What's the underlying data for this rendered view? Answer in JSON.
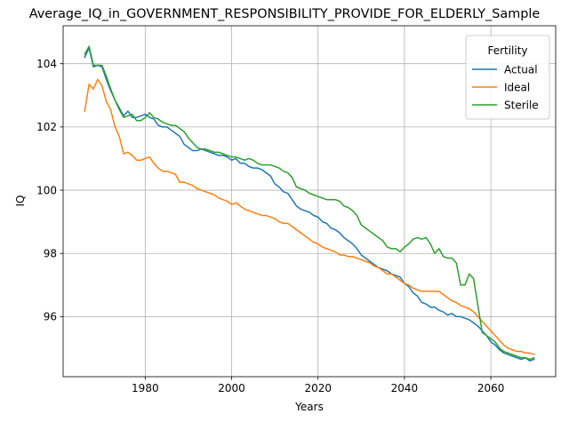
{
  "chart_data": {
    "type": "line",
    "title": "Average_IQ_in_GOVERNMENT_RESPONSIBILITY_PROVIDE_FOR_ELDERLY_Sample",
    "xlabel": "Years",
    "ylabel": "IQ",
    "xlim": [
      1961,
      2075
    ],
    "ylim": [
      94.1,
      105.2
    ],
    "xticks": [
      1980,
      2000,
      2020,
      2040,
      2060
    ],
    "yticks": [
      96,
      98,
      100,
      102,
      104
    ],
    "grid": true,
    "legend": {
      "title": "Fertility",
      "placement": "top-right"
    },
    "x": [
      1966,
      1967,
      1968,
      1969,
      1970,
      1971,
      1972,
      1973,
      1974,
      1975,
      1976,
      1977,
      1978,
      1979,
      1980,
      1981,
      1982,
      1983,
      1984,
      1985,
      1986,
      1987,
      1988,
      1989,
      1990,
      1991,
      1992,
      1993,
      1994,
      1995,
      1996,
      1997,
      1998,
      1999,
      2000,
      2001,
      2002,
      2003,
      2004,
      2005,
      2006,
      2007,
      2008,
      2009,
      2010,
      2011,
      2012,
      2013,
      2014,
      2015,
      2016,
      2017,
      2018,
      2019,
      2020,
      2021,
      2022,
      2023,
      2024,
      2025,
      2026,
      2027,
      2028,
      2029,
      2030,
      2031,
      2032,
      2033,
      2034,
      2035,
      2036,
      2037,
      2038,
      2039,
      2040,
      2041,
      2042,
      2043,
      2044,
      2045,
      2046,
      2047,
      2048,
      2049,
      2050,
      2051,
      2052,
      2053,
      2054,
      2055,
      2056,
      2057,
      2058,
      2059,
      2060,
      2061,
      2062,
      2063,
      2064,
      2065,
      2066,
      2067,
      2068,
      2069,
      2070
    ],
    "series": [
      {
        "name": "Actual",
        "color": "#1f77b4",
        "values": [
          104.2,
          104.5,
          103.9,
          103.95,
          103.9,
          103.5,
          103.15,
          102.85,
          102.6,
          102.35,
          102.5,
          102.3,
          102.3,
          102.35,
          102.4,
          102.3,
          102.25,
          102.05,
          102.0,
          102.0,
          101.9,
          101.8,
          101.7,
          101.45,
          101.35,
          101.25,
          101.25,
          101.3,
          101.25,
          101.2,
          101.15,
          101.1,
          101.1,
          101.05,
          100.95,
          101.0,
          100.85,
          100.85,
          100.75,
          100.7,
          100.7,
          100.65,
          100.55,
          100.45,
          100.2,
          100.1,
          99.95,
          99.9,
          99.7,
          99.5,
          99.4,
          99.35,
          99.3,
          99.2,
          99.15,
          99.0,
          98.95,
          98.8,
          98.75,
          98.65,
          98.5,
          98.4,
          98.3,
          98.15,
          97.95,
          97.85,
          97.75,
          97.65,
          97.55,
          97.5,
          97.45,
          97.35,
          97.3,
          97.25,
          97.05,
          96.95,
          96.75,
          96.65,
          96.45,
          96.4,
          96.3,
          96.3,
          96.2,
          96.15,
          96.05,
          96.1,
          96.0,
          96.0,
          95.95,
          95.9,
          95.8,
          95.7,
          95.55,
          95.4,
          95.2,
          95.1,
          94.95,
          94.85,
          94.8,
          94.75,
          94.7,
          94.65,
          94.7,
          94.6,
          94.65
        ]
      },
      {
        "name": "Ideal",
        "color": "#ff7f0e",
        "values": [
          102.5,
          103.35,
          103.2,
          103.5,
          103.3,
          102.8,
          102.55,
          102.0,
          101.7,
          101.15,
          101.2,
          101.1,
          100.95,
          100.95,
          101.0,
          101.05,
          100.85,
          100.7,
          100.6,
          100.6,
          100.55,
          100.5,
          100.25,
          100.25,
          100.2,
          100.15,
          100.05,
          100.0,
          99.95,
          99.9,
          99.85,
          99.75,
          99.7,
          99.65,
          99.55,
          99.6,
          99.5,
          99.4,
          99.35,
          99.3,
          99.25,
          99.2,
          99.2,
          99.15,
          99.1,
          99.0,
          98.95,
          98.95,
          98.85,
          98.75,
          98.65,
          98.55,
          98.45,
          98.35,
          98.3,
          98.2,
          98.15,
          98.1,
          98.05,
          97.95,
          97.95,
          97.9,
          97.9,
          97.85,
          97.8,
          97.75,
          97.7,
          97.6,
          97.55,
          97.45,
          97.35,
          97.35,
          97.25,
          97.15,
          97.05,
          97.0,
          96.9,
          96.85,
          96.8,
          96.8,
          96.8,
          96.8,
          96.8,
          96.7,
          96.6,
          96.5,
          96.45,
          96.35,
          96.3,
          96.25,
          96.15,
          96.0,
          95.85,
          95.7,
          95.55,
          95.4,
          95.25,
          95.1,
          95.0,
          94.95,
          94.9,
          94.9,
          94.85,
          94.85,
          94.8
        ]
      },
      {
        "name": "Sterile",
        "color": "#2ca02c",
        "values": [
          104.3,
          104.55,
          103.95,
          103.95,
          103.95,
          103.6,
          103.2,
          102.85,
          102.55,
          102.3,
          102.35,
          102.4,
          102.2,
          102.2,
          102.3,
          102.45,
          102.3,
          102.25,
          102.15,
          102.1,
          102.05,
          102.05,
          101.95,
          101.85,
          101.65,
          101.5,
          101.35,
          101.3,
          101.3,
          101.25,
          101.2,
          101.2,
          101.15,
          101.1,
          101.05,
          101.05,
          101.0,
          100.95,
          101.0,
          100.95,
          100.85,
          100.8,
          100.8,
          100.8,
          100.75,
          100.7,
          100.6,
          100.55,
          100.4,
          100.1,
          100.05,
          100.0,
          99.9,
          99.85,
          99.8,
          99.75,
          99.7,
          99.7,
          99.7,
          99.65,
          99.5,
          99.45,
          99.35,
          99.2,
          98.9,
          98.8,
          98.7,
          98.6,
          98.5,
          98.4,
          98.2,
          98.15,
          98.15,
          98.05,
          98.2,
          98.3,
          98.45,
          98.5,
          98.45,
          98.5,
          98.3,
          98.0,
          98.15,
          97.9,
          97.85,
          97.85,
          97.7,
          97.0,
          97.0,
          97.35,
          97.2,
          96.35,
          95.5,
          95.4,
          95.3,
          95.2,
          95.0,
          94.9,
          94.85,
          94.8,
          94.75,
          94.7,
          94.7,
          94.65,
          94.7
        ]
      }
    ]
  }
}
